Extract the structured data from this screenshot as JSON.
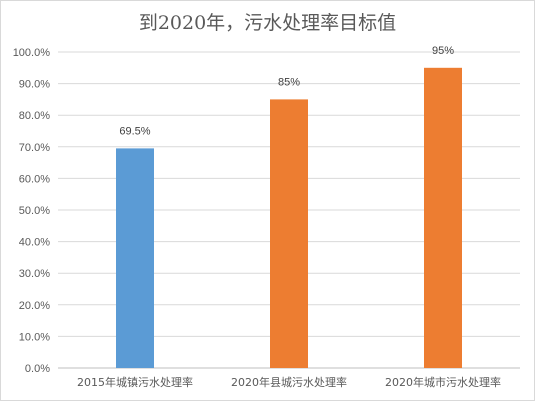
{
  "chart_data": {
    "type": "bar",
    "title": "到2020年，污水处理率目标值",
    "categories": [
      "2015年城镇污水处理率",
      "2020年县城污水处理率",
      "2020年城市污水处理率"
    ],
    "values": [
      69.5,
      85,
      95
    ],
    "data_labels": [
      "69.5%",
      "85%",
      "95%"
    ],
    "bar_colors": [
      "#5b9bd5",
      "#ed7d31",
      "#ed7d31"
    ],
    "ylim": [
      0,
      100
    ],
    "yticks": [
      "0.0%",
      "10.0%",
      "20.0%",
      "30.0%",
      "40.0%",
      "50.0%",
      "60.0%",
      "70.0%",
      "80.0%",
      "90.0%",
      "100.0%"
    ],
    "xlabel": "",
    "ylabel": "",
    "grid": true,
    "legend": "none"
  }
}
